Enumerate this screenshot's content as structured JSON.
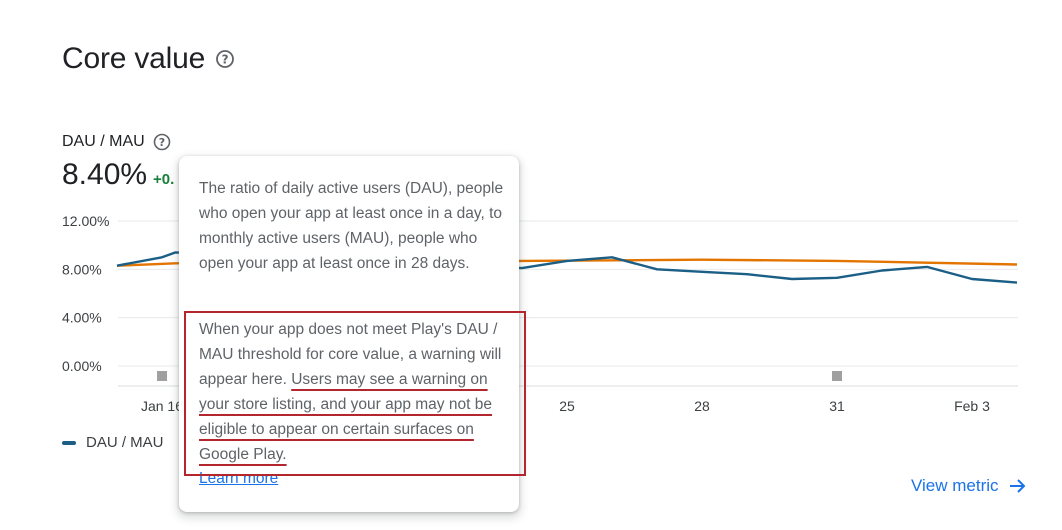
{
  "section": {
    "title": "Core value",
    "help_icon": "help-circle-icon"
  },
  "metric": {
    "label": "DAU / MAU",
    "value": "8.40%",
    "delta": "+0."
  },
  "chart_data": {
    "type": "line",
    "y_ticks": [
      "12.00%",
      "8.00%",
      "4.00%",
      "0.00%"
    ],
    "ylim": [
      0,
      12
    ],
    "x_ticks": [
      {
        "label": "Jan 16",
        "day": 0
      },
      {
        "label": "25",
        "day": 9
      },
      {
        "label": "28",
        "day": 12
      },
      {
        "label": "31",
        "day": 15
      },
      {
        "label": "Feb 3",
        "day": 18
      }
    ],
    "series": [
      {
        "name": "DAU / MAU",
        "color": "#1b5e86",
        "points": [
          {
            "day": -1,
            "value": 8.3
          },
          {
            "day": 0,
            "value": 9.0
          },
          {
            "day": 0.3,
            "value": 9.4
          },
          {
            "day": 8,
            "value": 8.1
          },
          {
            "day": 9,
            "value": 8.7
          },
          {
            "day": 10,
            "value": 9.0
          },
          {
            "day": 11,
            "value": 8.0
          },
          {
            "day": 12,
            "value": 7.8
          },
          {
            "day": 13,
            "value": 7.6
          },
          {
            "day": 14,
            "value": 7.2
          },
          {
            "day": 15,
            "value": 7.3
          },
          {
            "day": 16,
            "value": 7.9
          },
          {
            "day": 17,
            "value": 8.2
          },
          {
            "day": 18,
            "value": 7.2
          },
          {
            "day": 19,
            "value": 6.9
          }
        ]
      },
      {
        "color": "#e37400",
        "points": [
          {
            "day": -1,
            "value": 8.3
          },
          {
            "day": 0.3,
            "value": 8.5
          },
          {
            "day": 8,
            "value": 8.7
          },
          {
            "day": 12,
            "value": 8.8
          },
          {
            "day": 15,
            "value": 8.7
          },
          {
            "day": 19,
            "value": 8.4
          }
        ]
      }
    ],
    "markers": [
      {
        "day": 0,
        "color": "#a0a0a0"
      },
      {
        "day": 15,
        "color": "#a0a0a0"
      }
    ]
  },
  "legend": {
    "label": "DAU / MAU",
    "color": "#1b5e86"
  },
  "tooltip": {
    "para1": "The ratio of daily active users (DAU), people who open your app at least once in a day, to monthly active users (MAU), people who open your app at least once in 28 days.",
    "para2_plain": "When your app does not meet Play's DAU / MAU threshold for core value, a warning will appear here. ",
    "para2_highlight": "Users may see a warning on your store listing, and your app may not be eligible to appear on certain surfaces on Google Play.",
    "learn_more": "Learn more"
  },
  "view_metric": {
    "label": "View metric",
    "icon": "arrow-right-icon"
  }
}
